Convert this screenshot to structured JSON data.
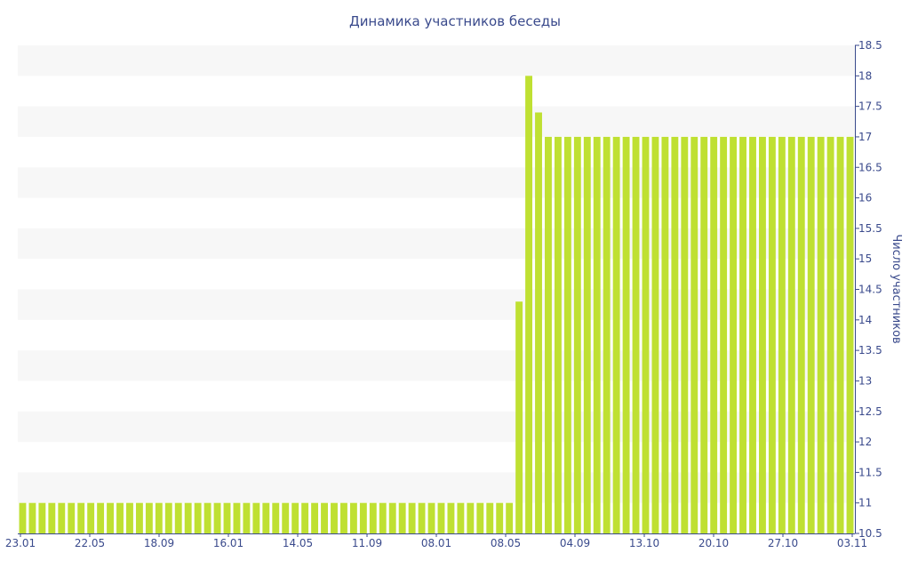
{
  "chart_data": {
    "type": "bar",
    "title": "Динамика участников беседы",
    "ylabel": "Число участников",
    "ylim": [
      10.5,
      18.5
    ],
    "ytick_step": 0.5,
    "yaxis_position": "right",
    "grid": "alternating-bands",
    "bar_color": "#bfe032",
    "x_tick_labels": [
      "23.01",
      "22.05",
      "18.09",
      "16.01",
      "14.05",
      "11.09",
      "08.01",
      "08.05",
      "04.09",
      "13.10",
      "20.10",
      "27.10",
      "03.11"
    ],
    "values": [
      11,
      11,
      11,
      11,
      11,
      11,
      11,
      11,
      11,
      11,
      11,
      11,
      11,
      11,
      11,
      11,
      11,
      11,
      11,
      11,
      11,
      11,
      11,
      11,
      11,
      11,
      11,
      11,
      11,
      11,
      11,
      11,
      11,
      11,
      11,
      11,
      11,
      11,
      11,
      11,
      11,
      11,
      11,
      11,
      11,
      11,
      11,
      11,
      11,
      11,
      11,
      14.3,
      18,
      17.4,
      17,
      17,
      17,
      17,
      17,
      17,
      17,
      17,
      17,
      17,
      17,
      17,
      17,
      17,
      17,
      17,
      17,
      17,
      17,
      17,
      17,
      17,
      17,
      17,
      17,
      17,
      17,
      17,
      17,
      17,
      17,
      17
    ]
  }
}
